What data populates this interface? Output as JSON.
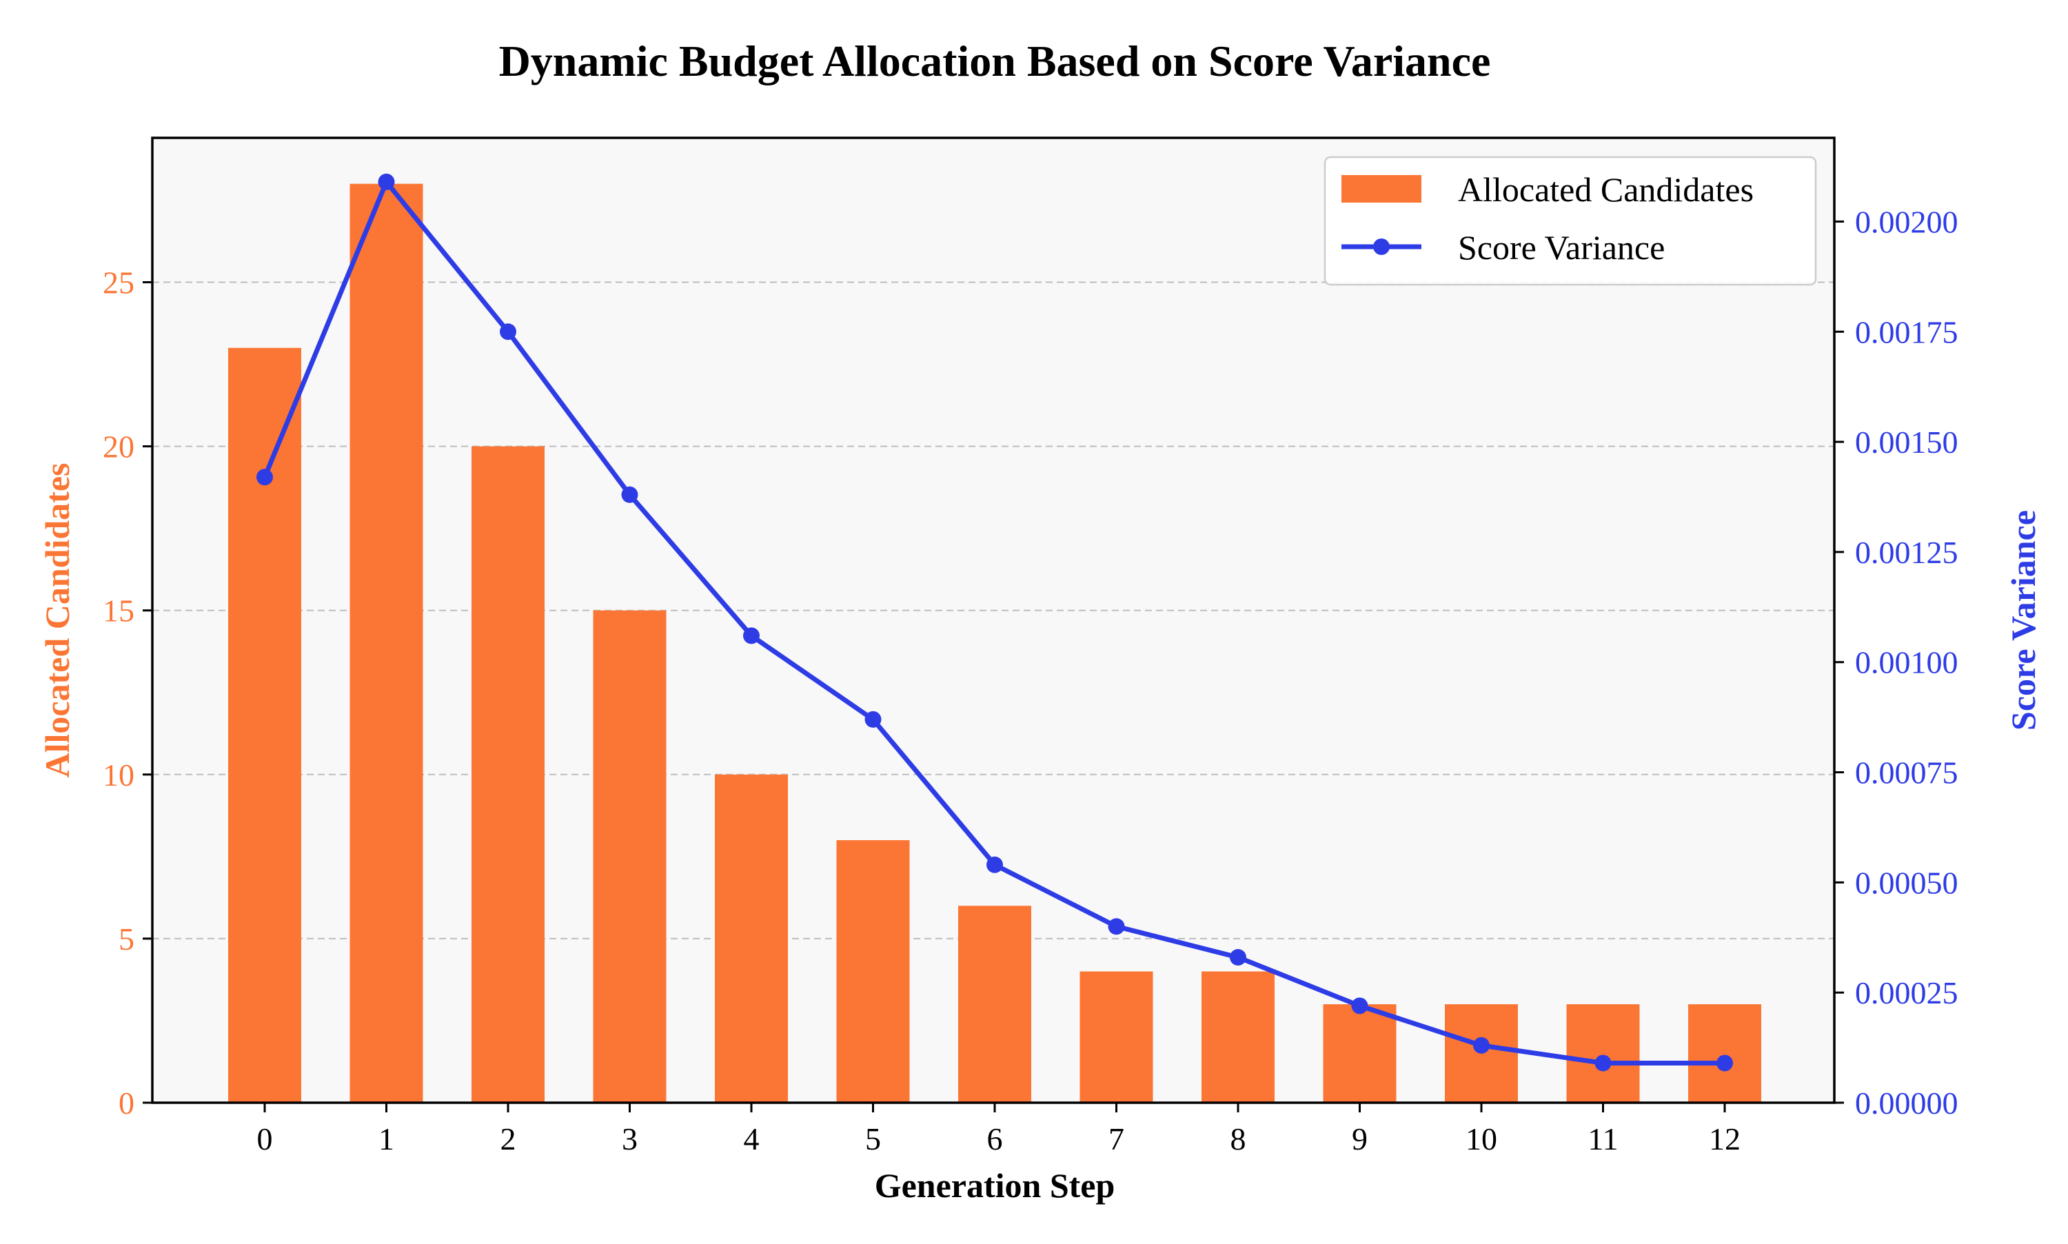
{
  "chart_data": {
    "type": "bar",
    "title": "Dynamic Budget Allocation Based on Score Variance",
    "xlabel": "Generation Step",
    "ylabel_left": "Allocated Candidates",
    "ylabel_right": "Score Variance",
    "categories": [
      "0",
      "1",
      "2",
      "3",
      "4",
      "5",
      "6",
      "7",
      "8",
      "9",
      "10",
      "11",
      "12"
    ],
    "series": [
      {
        "name": "Allocated Candidates",
        "type": "bar",
        "axis": "left",
        "color": "#FB7634",
        "values": [
          23,
          28,
          20,
          15,
          10,
          8,
          6,
          4,
          4,
          3,
          3,
          3,
          3
        ]
      },
      {
        "name": "Score Variance",
        "type": "line",
        "axis": "right",
        "color": "#2E3CE6",
        "values": [
          0.00142,
          0.00209,
          0.00175,
          0.00138,
          0.00106,
          0.00087,
          0.00054,
          0.0004,
          0.00033,
          0.00022,
          0.00013,
          9e-05,
          9e-05
        ]
      }
    ],
    "ylim_left": [
      0,
      29.4
    ],
    "yticks_left": [
      0,
      5,
      10,
      15,
      20,
      25
    ],
    "ylim_right": [
      0,
      0.00219
    ],
    "yticks_right": [
      "0.00000",
      "0.00025",
      "0.00050",
      "0.00075",
      "0.00100",
      "0.00125",
      "0.00150",
      "0.00175",
      "0.00200"
    ],
    "grid": "horizontal dashed",
    "legend_position": "top-right",
    "plot_background": "#F8F8F8",
    "left_axis_color": "#FB7634",
    "right_axis_color": "#2E3CE6"
  }
}
